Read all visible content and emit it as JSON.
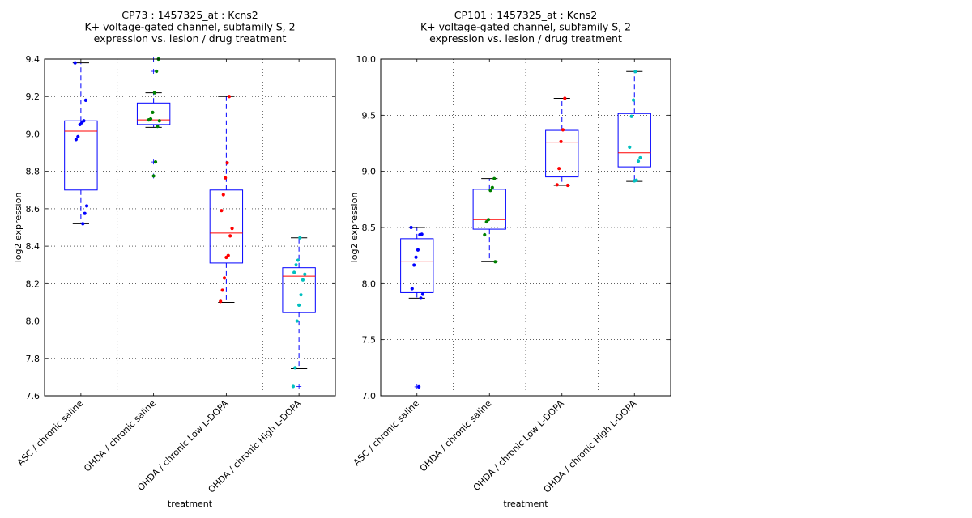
{
  "chart_data": [
    {
      "type": "box",
      "title": [
        "CP73 : 1457325_at : Kcns2",
        "K+ voltage-gated channel, subfamily S, 2",
        "expression vs. lesion / drug treatment"
      ],
      "xlabel": "treatment",
      "ylabel": "log2 expression",
      "ylim": [
        7.6,
        9.4
      ],
      "yticks": [
        "7.6",
        "7.8",
        "8.0",
        "8.2",
        "8.4",
        "8.6",
        "8.8",
        "9.0",
        "9.2",
        "9.4"
      ],
      "grid": true,
      "categories": [
        "ASC / chronic saline",
        "OHDA / chronic saline",
        "OHDA / chronic Low L-DOPA",
        "OHDA / chronic High L-DOPA"
      ],
      "boxes": [
        {
          "q1": 8.7,
          "median": 9.015,
          "q3": 9.07,
          "whisker_low": 8.52,
          "whisker_high": 9.38,
          "outliers": []
        },
        {
          "q1": 9.05,
          "median": 9.075,
          "q3": 9.165,
          "whisker_low": 9.035,
          "whisker_high": 9.22,
          "outliers": [
            8.775,
            8.85,
            9.335,
            9.4
          ]
        },
        {
          "q1": 8.31,
          "median": 8.47,
          "q3": 8.7,
          "whisker_low": 8.1,
          "whisker_high": 9.2,
          "outliers": []
        },
        {
          "q1": 8.045,
          "median": 8.24,
          "q3": 8.285,
          "whisker_low": 7.745,
          "whisker_high": 8.445,
          "outliers": [
            7.65
          ]
        }
      ],
      "points": [
        {
          "color": "#0000ff",
          "values": [
            9.38,
            9.18,
            9.07,
            9.06,
            9.05,
            8.985,
            8.97,
            8.615,
            8.575,
            8.52
          ]
        },
        {
          "color": "#008000",
          "values": [
            9.4,
            9.335,
            9.22,
            9.115,
            9.08,
            9.075,
            9.07,
            9.04,
            8.85,
            8.775
          ]
        },
        {
          "color": "#ff0000",
          "values": [
            9.2,
            8.845,
            8.765,
            8.675,
            8.59,
            8.495,
            8.455,
            8.35,
            8.34,
            8.23,
            8.165,
            8.105
          ]
        },
        {
          "color": "#00bfbf",
          "values": [
            8.445,
            8.325,
            8.3,
            8.26,
            8.25,
            8.22,
            8.14,
            8.085,
            8.0,
            7.75,
            7.65
          ]
        }
      ]
    },
    {
      "type": "box",
      "title": [
        "CP101 : 1457325_at : Kcns2",
        "K+ voltage-gated channel, subfamily S, 2",
        "expression vs. lesion / drug treatment"
      ],
      "xlabel": "treatment",
      "ylabel": "log2 expression",
      "ylim": [
        7.0,
        10.0
      ],
      "yticks": [
        "7.0",
        "7.5",
        "8.0",
        "8.5",
        "9.0",
        "9.5",
        "10.0"
      ],
      "grid": true,
      "categories": [
        "ASC / chronic saline",
        "OHDA / chronic saline",
        "OHDA / chronic Low L-DOPA",
        "OHDA / chronic High L-DOPA"
      ],
      "boxes": [
        {
          "q1": 7.92,
          "median": 8.2,
          "q3": 8.4,
          "whisker_low": 7.87,
          "whisker_high": 8.5,
          "outliers": [
            7.08
          ]
        },
        {
          "q1": 8.485,
          "median": 8.57,
          "q3": 8.84,
          "whisker_low": 8.195,
          "whisker_high": 8.935,
          "outliers": []
        },
        {
          "q1": 8.95,
          "median": 9.26,
          "q3": 9.365,
          "whisker_low": 8.875,
          "whisker_high": 9.65,
          "outliers": []
        },
        {
          "q1": 9.04,
          "median": 9.165,
          "q3": 9.515,
          "whisker_low": 8.91,
          "whisker_high": 9.89,
          "outliers": []
        }
      ],
      "points": [
        {
          "color": "#0000ff",
          "values": [
            8.5,
            8.44,
            8.435,
            8.3,
            8.235,
            8.165,
            7.955,
            7.905,
            7.87,
            7.08
          ]
        },
        {
          "color": "#008000",
          "values": [
            8.935,
            8.855,
            8.83,
            8.57,
            8.55,
            8.435,
            8.195
          ]
        },
        {
          "color": "#ff0000",
          "values": [
            9.65,
            9.37,
            9.265,
            9.025,
            8.88,
            8.875
          ]
        },
        {
          "color": "#00bfbf",
          "values": [
            9.89,
            9.635,
            9.49,
            9.215,
            9.12,
            9.09,
            8.92,
            8.915
          ]
        }
      ]
    }
  ]
}
